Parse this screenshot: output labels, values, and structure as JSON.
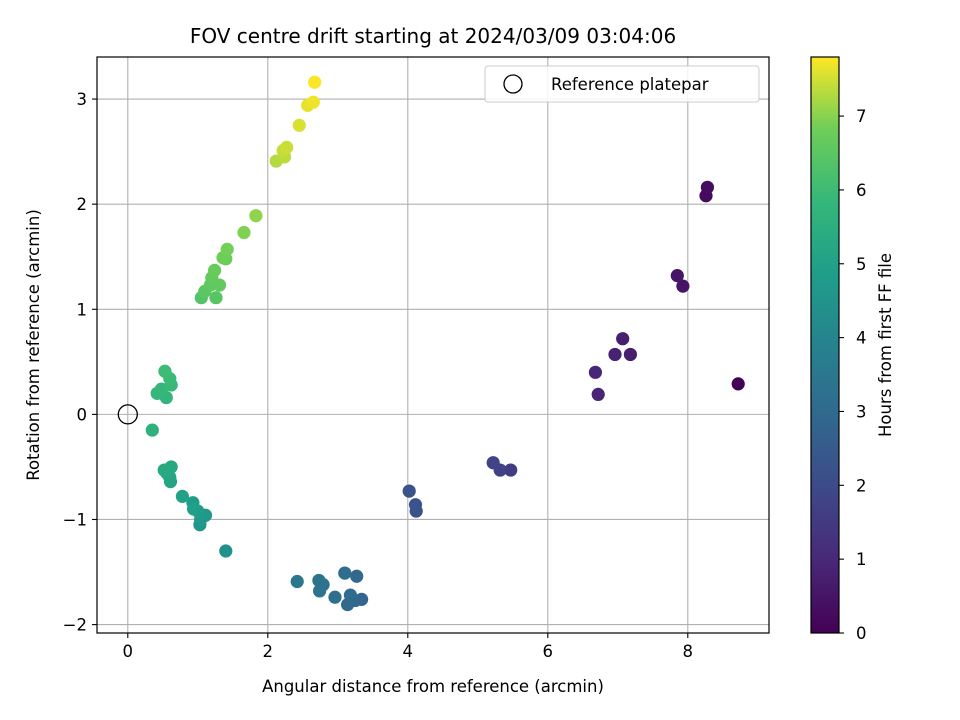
{
  "chart_data": {
    "type": "scatter",
    "title": "FOV centre drift starting at 2024/03/09 03:04:06",
    "xlabel": "Angular distance from reference (arcmin)",
    "ylabel": "Rotation from reference (arcmin)",
    "xlim": [
      -0.44,
      9.16
    ],
    "ylim": [
      -2.08,
      3.4
    ],
    "xticks": [
      0,
      2,
      4,
      6,
      8
    ],
    "yticks": [
      -2,
      -1,
      0,
      1,
      2,
      3
    ],
    "grid": true,
    "legend": {
      "position": "top-right",
      "entries": [
        "Reference platepar"
      ]
    },
    "reference_point": {
      "x": 0,
      "y": 0
    },
    "colorbar": {
      "label": "Hours from first FF file",
      "range": [
        0,
        7.8
      ],
      "ticks": [
        0,
        1,
        2,
        3,
        4,
        5,
        6,
        7
      ],
      "colormap": "viridis"
    },
    "points": [
      {
        "x": 8.72,
        "y": 0.29,
        "h": 0.05
      },
      {
        "x": 8.26,
        "y": 2.08,
        "h": 0.25
      },
      {
        "x": 8.28,
        "y": 2.16,
        "h": 0.3
      },
      {
        "x": 7.93,
        "y": 1.22,
        "h": 0.45
      },
      {
        "x": 7.85,
        "y": 1.32,
        "h": 0.5
      },
      {
        "x": 7.18,
        "y": 0.57,
        "h": 0.7
      },
      {
        "x": 7.07,
        "y": 0.72,
        "h": 0.75
      },
      {
        "x": 6.96,
        "y": 0.57,
        "h": 0.8
      },
      {
        "x": 6.72,
        "y": 0.19,
        "h": 0.9
      },
      {
        "x": 6.68,
        "y": 0.4,
        "h": 0.95
      },
      {
        "x": 5.47,
        "y": -0.53,
        "h": 1.6
      },
      {
        "x": 5.32,
        "y": -0.53,
        "h": 1.7
      },
      {
        "x": 5.22,
        "y": -0.46,
        "h": 1.8
      },
      {
        "x": 4.12,
        "y": -0.92,
        "h": 2.2
      },
      {
        "x": 4.11,
        "y": -0.86,
        "h": 2.25
      },
      {
        "x": 4.02,
        "y": -0.73,
        "h": 2.3
      },
      {
        "x": 3.34,
        "y": -1.76,
        "h": 2.85
      },
      {
        "x": 3.25,
        "y": -1.77,
        "h": 2.9
      },
      {
        "x": 3.27,
        "y": -1.54,
        "h": 2.95
      },
      {
        "x": 3.18,
        "y": -1.72,
        "h": 3.0
      },
      {
        "x": 3.14,
        "y": -1.81,
        "h": 3.05
      },
      {
        "x": 3.1,
        "y": -1.51,
        "h": 3.1
      },
      {
        "x": 2.96,
        "y": -1.74,
        "h": 3.15
      },
      {
        "x": 2.79,
        "y": -1.62,
        "h": 3.25
      },
      {
        "x": 2.74,
        "y": -1.68,
        "h": 3.3
      },
      {
        "x": 2.73,
        "y": -1.58,
        "h": 3.35
      },
      {
        "x": 2.42,
        "y": -1.59,
        "h": 3.5
      },
      {
        "x": 1.4,
        "y": -1.3,
        "h": 4.4
      },
      {
        "x": 1.03,
        "y": -1.05,
        "h": 4.6
      },
      {
        "x": 1.11,
        "y": -0.96,
        "h": 4.7
      },
      {
        "x": 1.04,
        "y": -1.0,
        "h": 4.75
      },
      {
        "x": 1.0,
        "y": -0.92,
        "h": 4.8
      },
      {
        "x": 0.93,
        "y": -0.84,
        "h": 4.85
      },
      {
        "x": 0.94,
        "y": -0.9,
        "h": 4.9
      },
      {
        "x": 0.78,
        "y": -0.78,
        "h": 5.0
      },
      {
        "x": 0.61,
        "y": -0.64,
        "h": 5.1
      },
      {
        "x": 0.6,
        "y": -0.6,
        "h": 5.15
      },
      {
        "x": 0.56,
        "y": -0.56,
        "h": 5.2
      },
      {
        "x": 0.62,
        "y": -0.5,
        "h": 5.25
      },
      {
        "x": 0.52,
        "y": -0.53,
        "h": 5.3
      },
      {
        "x": 0.35,
        "y": -0.15,
        "h": 5.6
      },
      {
        "x": 0.55,
        "y": 0.16,
        "h": 5.75
      },
      {
        "x": 0.42,
        "y": 0.2,
        "h": 5.8
      },
      {
        "x": 0.48,
        "y": 0.24,
        "h": 5.85
      },
      {
        "x": 0.62,
        "y": 0.28,
        "h": 5.9
      },
      {
        "x": 0.6,
        "y": 0.34,
        "h": 5.95
      },
      {
        "x": 0.53,
        "y": 0.41,
        "h": 6.0
      },
      {
        "x": 1.05,
        "y": 1.11,
        "h": 6.4
      },
      {
        "x": 1.26,
        "y": 1.11,
        "h": 6.45
      },
      {
        "x": 1.1,
        "y": 1.17,
        "h": 6.5
      },
      {
        "x": 1.18,
        "y": 1.23,
        "h": 6.55
      },
      {
        "x": 1.31,
        "y": 1.23,
        "h": 6.6
      },
      {
        "x": 1.2,
        "y": 1.3,
        "h": 6.65
      },
      {
        "x": 1.24,
        "y": 1.37,
        "h": 6.7
      },
      {
        "x": 1.4,
        "y": 1.48,
        "h": 6.75
      },
      {
        "x": 1.36,
        "y": 1.49,
        "h": 6.8
      },
      {
        "x": 1.42,
        "y": 1.57,
        "h": 6.85
      },
      {
        "x": 1.66,
        "y": 1.73,
        "h": 6.95
      },
      {
        "x": 1.83,
        "y": 1.89,
        "h": 7.05
      },
      {
        "x": 2.12,
        "y": 2.41,
        "h": 7.3
      },
      {
        "x": 2.24,
        "y": 2.45,
        "h": 7.35
      },
      {
        "x": 2.22,
        "y": 2.51,
        "h": 7.4
      },
      {
        "x": 2.27,
        "y": 2.54,
        "h": 7.45
      },
      {
        "x": 2.45,
        "y": 2.75,
        "h": 7.55
      },
      {
        "x": 2.57,
        "y": 2.94,
        "h": 7.65
      },
      {
        "x": 2.65,
        "y": 2.97,
        "h": 7.7
      },
      {
        "x": 2.67,
        "y": 3.16,
        "h": 7.78
      }
    ]
  }
}
